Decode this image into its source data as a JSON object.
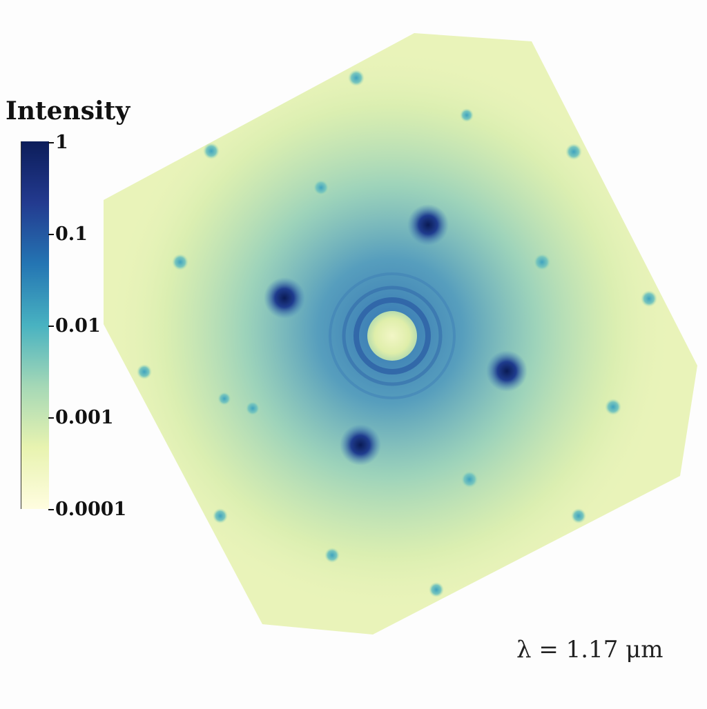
{
  "colorbar": {
    "title": "Intensity",
    "ticks": [
      "1",
      "0.1",
      "0.01",
      "0.001",
      "0.0001"
    ],
    "scale": "log",
    "colors": [
      "#fffde0",
      "#e8f3b0",
      "#a5d8b6",
      "#48b2c1",
      "#2475b3",
      "#233a8f",
      "#0c1d5a"
    ]
  },
  "annotation": {
    "wavelength": "λ = 1.17 μm"
  }
}
